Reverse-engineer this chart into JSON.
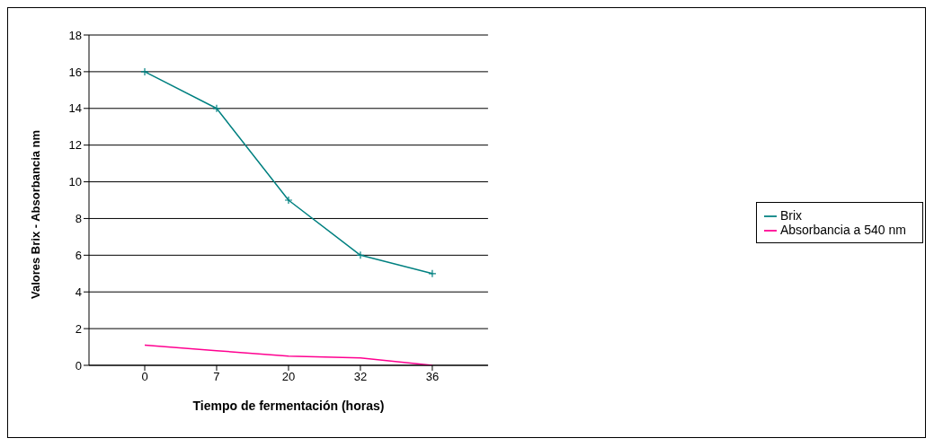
{
  "chart_data": {
    "type": "line",
    "xlabel": "Tiempo de fermentación (horas)",
    "ylabel": "Valores Brix - Absorbancia nm",
    "categories": [
      "0",
      "7",
      "20",
      "32",
      "36"
    ],
    "series": [
      {
        "name": "Brix",
        "color": "#008080",
        "values": [
          16,
          14,
          9,
          6,
          5
        ],
        "marker": "cross"
      },
      {
        "name": "Absorbancia a 540 nm",
        "color": "#ff0090",
        "values": [
          1.1,
          0.8,
          0.5,
          0.4,
          0
        ]
      }
    ],
    "ylim": [
      0,
      18
    ],
    "yticks": [
      0,
      2,
      4,
      6,
      8,
      10,
      12,
      14,
      16,
      18
    ],
    "grid": "y",
    "legend": "right"
  }
}
